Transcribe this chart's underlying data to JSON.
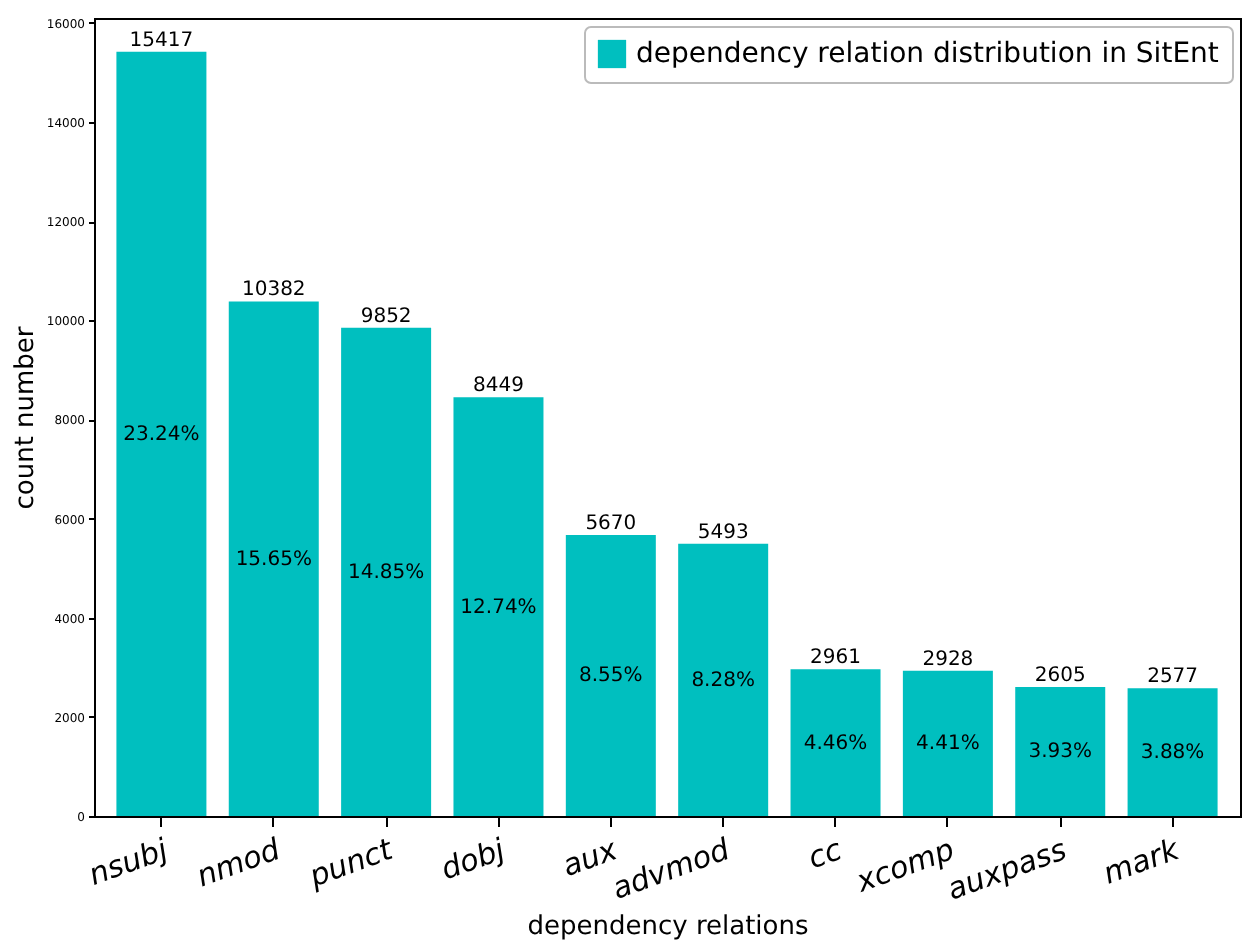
{
  "chart_data": {
    "type": "bar",
    "xlabel": "dependency relations",
    "ylabel": "count number",
    "categories": [
      "nsubj",
      "nmod",
      "punct",
      "dobj",
      "aux",
      "advmod",
      "cc",
      "xcomp",
      "auxpass",
      "mark"
    ],
    "series": [
      {
        "name": "dependency relation distribution in SitEnt",
        "color": "#00bfbf",
        "values": [
          15417,
          10382,
          9852,
          8449,
          5670,
          5493,
          2961,
          2928,
          2605,
          2577
        ]
      }
    ],
    "ylim": [
      0,
      16100
    ],
    "yticks": [
      0,
      2000,
      4000,
      6000,
      8000,
      10000,
      12000,
      14000,
      16000
    ],
    "data_labels": true,
    "grid": false,
    "legend": "top right",
    "annotations": [
      "23.24%",
      "15.65%",
      "14.85%",
      "12.74%",
      "8.55%",
      "8.28%",
      "4.46%",
      "4.41%",
      "3.93%",
      "3.88%"
    ]
  }
}
